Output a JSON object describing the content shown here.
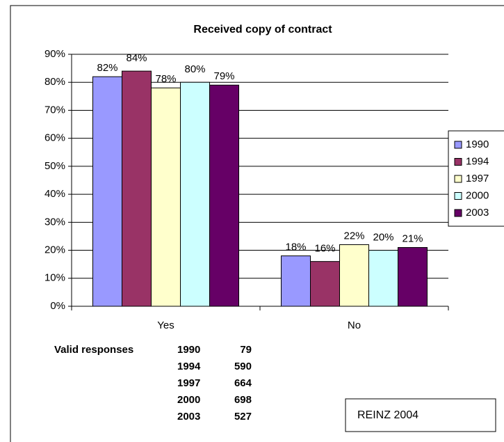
{
  "chart_data": {
    "type": "bar",
    "title": "Received copy of contract",
    "categories": [
      "Yes",
      "No"
    ],
    "series": [
      {
        "name": "1990",
        "color": "#9999ff",
        "values": [
          82,
          18
        ],
        "value_labels": [
          "82%",
          "18%"
        ]
      },
      {
        "name": "1994",
        "color": "#993366",
        "values": [
          84,
          16
        ],
        "value_labels": [
          "84%",
          "16%"
        ]
      },
      {
        "name": "1997",
        "color": "#ffffcc",
        "values": [
          78,
          22
        ],
        "value_labels": [
          "78%",
          "22%"
        ]
      },
      {
        "name": "2000",
        "color": "#ccffff",
        "values": [
          80,
          20
        ],
        "value_labels": [
          "80%",
          "20%"
        ]
      },
      {
        "name": "2003",
        "color": "#660066",
        "values": [
          79,
          21
        ],
        "value_labels": [
          "79%",
          "21%"
        ]
      }
    ],
    "ylim": [
      0,
      90
    ],
    "yticks": [
      {
        "value": 0,
        "label": "0%"
      },
      {
        "value": 10,
        "label": "10%"
      },
      {
        "value": 20,
        "label": "20%"
      },
      {
        "value": 30,
        "label": "30%"
      },
      {
        "value": 40,
        "label": "40%"
      },
      {
        "value": 50,
        "label": "50%"
      },
      {
        "value": 60,
        "label": "60%"
      },
      {
        "value": 70,
        "label": "70%"
      },
      {
        "value": 80,
        "label": "80%"
      },
      {
        "value": 90,
        "label": "90%"
      }
    ],
    "grid": true,
    "legend": "right"
  },
  "valid_responses": {
    "label": "Valid responses",
    "rows": [
      [
        "1990",
        "79"
      ],
      [
        "1994",
        "590"
      ],
      [
        "1997",
        "664"
      ],
      [
        "2000",
        "698"
      ],
      [
        "2003",
        "527"
      ]
    ]
  },
  "source": "REINZ 2004"
}
